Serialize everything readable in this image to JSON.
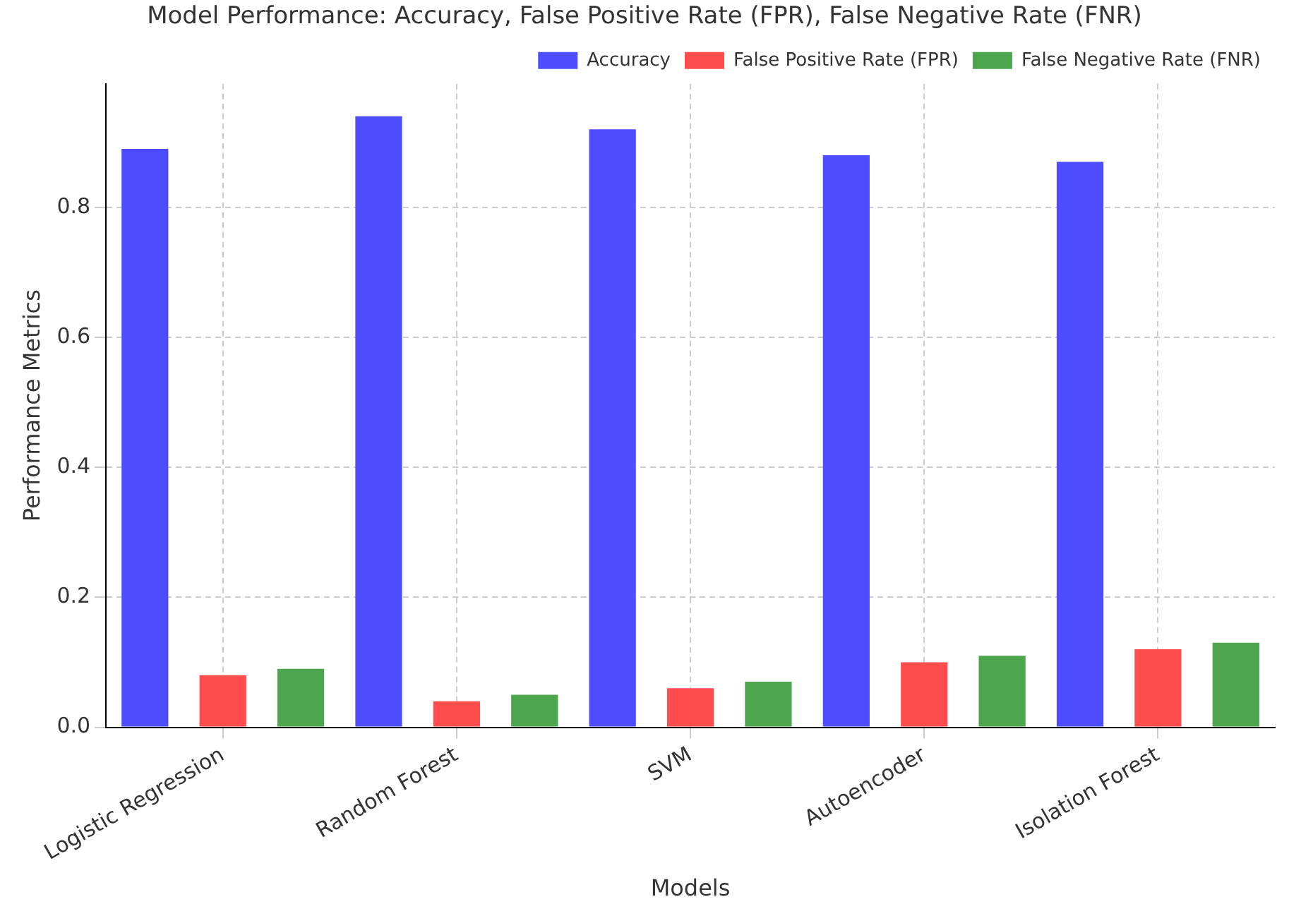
{
  "chart_data": {
    "type": "bar",
    "title": "Model Performance: Accuracy, False Positive Rate (FPR), False Negative Rate (FNR)",
    "xlabel": "Models",
    "ylabel": "Performance Metrics",
    "categories": [
      "Logistic Regression",
      "Random Forest",
      "SVM",
      "Autoencoder",
      "Isolation Forest"
    ],
    "series": [
      {
        "name": "Accuracy",
        "color": "#4d4dff",
        "values": [
          0.89,
          0.94,
          0.92,
          0.88,
          0.87
        ]
      },
      {
        "name": "False Positive Rate (FPR)",
        "color": "#ff4d4d",
        "values": [
          0.08,
          0.04,
          0.06,
          0.1,
          0.12
        ]
      },
      {
        "name": "False Negative Rate (FNR)",
        "color": "#4da64d",
        "values": [
          0.09,
          0.05,
          0.07,
          0.11,
          0.13
        ]
      }
    ],
    "ylim": [
      0,
      0.99
    ],
    "yticks": [
      {
        "value": 0,
        "label": "0.0"
      },
      0.2,
      0.4,
      0.6,
      0.8
    ],
    "grid": true,
    "legend": "top right"
  }
}
